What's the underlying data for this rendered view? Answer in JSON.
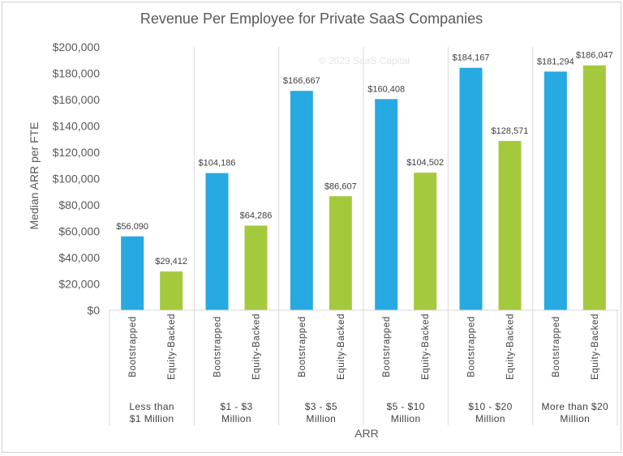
{
  "chart_data": {
    "type": "bar",
    "title": "Revenue Per Employee for Private SaaS Companies",
    "xlabel": "ARR",
    "ylabel": "Median ARR per FTE",
    "ylim": [
      0,
      200000
    ],
    "yticks": [
      "$0",
      "$20,000",
      "$40,000",
      "$60,000",
      "$80,000",
      "$100,000",
      "$120,000",
      "$140,000",
      "$160,000",
      "$180,000",
      "$200,000"
    ],
    "watermark": "© 2023 SaaS Capital",
    "grid": false,
    "groups": [
      {
        "label": [
          "Less than",
          "$1 Million"
        ],
        "bars": [
          {
            "category": "Bootstrapped",
            "value": 56090,
            "label": "$56,090"
          },
          {
            "category": "Equity-Backed",
            "value": 29412,
            "label": "$29,412"
          }
        ]
      },
      {
        "label": [
          "$1 - $3",
          "Million"
        ],
        "bars": [
          {
            "category": "Bootstrapped",
            "value": 104186,
            "label": "$104,186"
          },
          {
            "category": "Equity-Backed",
            "value": 64286,
            "label": "$64,286"
          }
        ]
      },
      {
        "label": [
          "$3 - $5",
          "Million"
        ],
        "bars": [
          {
            "category": "Bootstrapped",
            "value": 166667,
            "label": "$166,667"
          },
          {
            "category": "Equity-Backed",
            "value": 86607,
            "label": "$86,607"
          }
        ]
      },
      {
        "label": [
          "$5 - $10",
          "Million"
        ],
        "bars": [
          {
            "category": "Bootstrapped",
            "value": 160408,
            "label": "$160,408"
          },
          {
            "category": "Equity-Backed",
            "value": 104502,
            "label": "$104,502"
          }
        ]
      },
      {
        "label": [
          "$10 - $20",
          "Million"
        ],
        "bars": [
          {
            "category": "Bootstrapped",
            "value": 184167,
            "label": "$184,167"
          },
          {
            "category": "Equity-Backed",
            "value": 128571,
            "label": "$128,571"
          }
        ]
      },
      {
        "label": [
          "More than $20",
          "Million"
        ],
        "bars": [
          {
            "category": "Bootstrapped",
            "value": 181294,
            "label": "$181,294"
          },
          {
            "category": "Equity-Backed",
            "value": 186047,
            "label": "$186,047"
          }
        ]
      }
    ],
    "colors": {
      "Bootstrapped": "#27a9e1",
      "Equity-Backed": "#a5c93d"
    }
  }
}
